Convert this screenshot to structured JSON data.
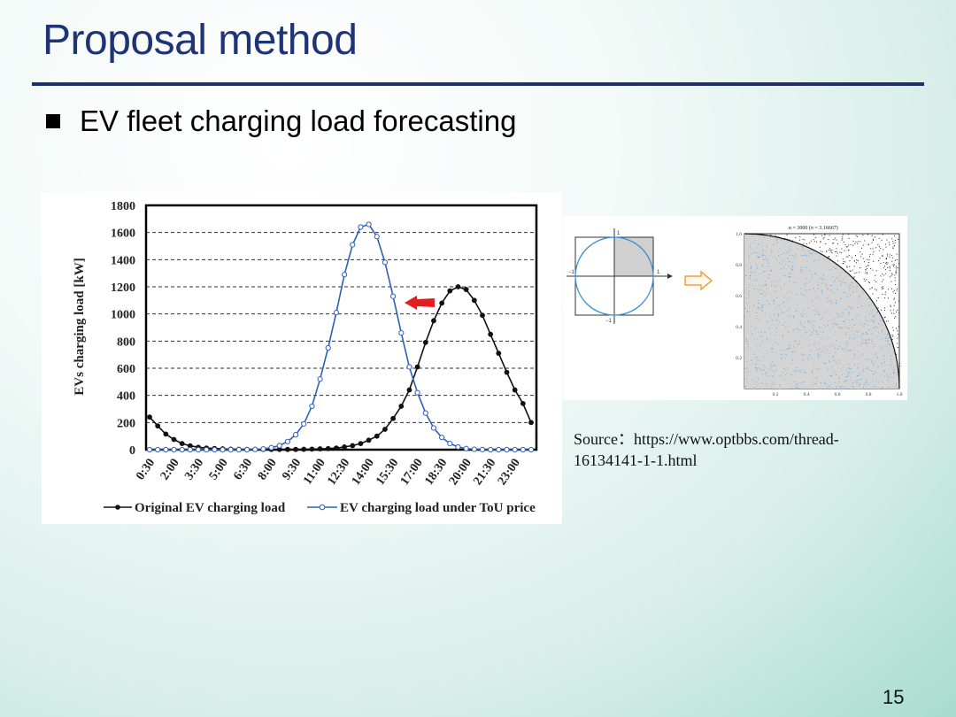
{
  "slide": {
    "title": "Proposal method",
    "bullet": "EV fleet charging load forecasting",
    "source_label": "Source：",
    "source_url": "https://www.optbbs.com/thread-16134141-1-1.html",
    "page_number": "15"
  },
  "chart_data": {
    "type": "line",
    "title": "",
    "xlabel": "",
    "ylabel": "EVs charging load [kW]",
    "ylim": [
      0,
      1800
    ],
    "yticks": [
      0,
      200,
      400,
      600,
      800,
      1000,
      1200,
      1400,
      1600,
      1800
    ],
    "grid": "horizontal dashed",
    "legend_position": "bottom",
    "x_tick_labels": [
      "0:30",
      "2:00",
      "3:30",
      "5:00",
      "6:30",
      "8:00",
      "9:30",
      "11:00",
      "12:30",
      "14:00",
      "15:30",
      "17:00",
      "18:30",
      "20:00",
      "21:30",
      "23:00"
    ],
    "x_count": 48,
    "series": [
      {
        "name": "Original EV charging load",
        "color": "#111111",
        "marker": "filled-circle",
        "values": [
          240,
          175,
          115,
          75,
          45,
          28,
          18,
          12,
          9,
          6,
          4,
          3,
          2,
          2,
          2,
          2,
          2,
          2,
          2,
          3,
          4,
          6,
          8,
          12,
          20,
          30,
          45,
          70,
          100,
          150,
          230,
          320,
          440,
          610,
          790,
          950,
          1080,
          1170,
          1200,
          1180,
          1100,
          990,
          850,
          710,
          570,
          440,
          340,
          200
        ]
      },
      {
        "name": "EV charging load under ToU price",
        "color": "#2f5fb8",
        "marker": "open-circle",
        "values": [
          0,
          0,
          0,
          0,
          0,
          0,
          0,
          0,
          0,
          0,
          0,
          0,
          0,
          2,
          5,
          15,
          30,
          60,
          110,
          190,
          320,
          520,
          750,
          1010,
          1290,
          1510,
          1640,
          1660,
          1570,
          1380,
          1130,
          860,
          610,
          420,
          270,
          160,
          90,
          45,
          20,
          8,
          3,
          1,
          0,
          0,
          0,
          0,
          0,
          0
        ]
      }
    ],
    "annotation": "red arrow pointing left (load shift)"
  },
  "monte_carlo": {
    "caption": "n = 3000 (π = 3.16667)",
    "y_ticks": [
      "1.0",
      "0.8",
      "0.6",
      "0.4",
      "0.2"
    ],
    "x_ticks": [
      "0.2",
      "0.4",
      "0.6",
      "0.8",
      "1.0"
    ],
    "small_axis_labels": {
      "top": "1",
      "right": "1",
      "left": "−1",
      "bottom": "−1"
    },
    "arrow_color": "#f0a040"
  }
}
